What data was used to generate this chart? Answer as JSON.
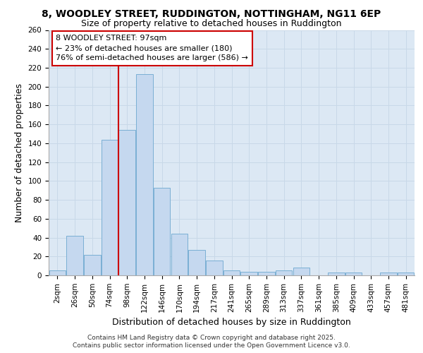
{
  "title_line1": "8, WOODLEY STREET, RUDDINGTON, NOTTINGHAM, NG11 6EP",
  "title_line2": "Size of property relative to detached houses in Ruddington",
  "xlabel": "Distribution of detached houses by size in Ruddington",
  "ylabel": "Number of detached properties",
  "categories": [
    "2sqm",
    "26sqm",
    "50sqm",
    "74sqm",
    "98sqm",
    "122sqm",
    "146sqm",
    "170sqm",
    "194sqm",
    "217sqm",
    "241sqm",
    "265sqm",
    "289sqm",
    "313sqm",
    "337sqm",
    "361sqm",
    "385sqm",
    "409sqm",
    "433sqm",
    "457sqm",
    "481sqm"
  ],
  "values": [
    5,
    42,
    22,
    144,
    154,
    213,
    93,
    44,
    27,
    16,
    5,
    4,
    4,
    5,
    8,
    0,
    3,
    3,
    0,
    3,
    3
  ],
  "bar_color": "#c5d8ef",
  "bar_edge_color": "#7aafd4",
  "vline_x_index": 4,
  "annotation_text_line1": "8 WOODLEY STREET: 97sqm",
  "annotation_text_line2": "← 23% of detached houses are smaller (180)",
  "annotation_text_line3": "76% of semi-detached houses are larger (586) →",
  "annotation_box_facecolor": "#ffffff",
  "annotation_box_edgecolor": "#cc0000",
  "vline_color": "#cc0000",
  "ylim": [
    0,
    260
  ],
  "yticks": [
    0,
    20,
    40,
    60,
    80,
    100,
    120,
    140,
    160,
    180,
    200,
    220,
    240,
    260
  ],
  "grid_color": "#c8d8e8",
  "background_color": "#dce8f4",
  "footer_line1": "Contains HM Land Registry data © Crown copyright and database right 2025.",
  "footer_line2": "Contains public sector information licensed under the Open Government Licence v3.0.",
  "title_fontsize": 10,
  "subtitle_fontsize": 9,
  "axis_label_fontsize": 9,
  "tick_fontsize": 7.5,
  "annotation_fontsize": 8,
  "footer_fontsize": 6.5
}
